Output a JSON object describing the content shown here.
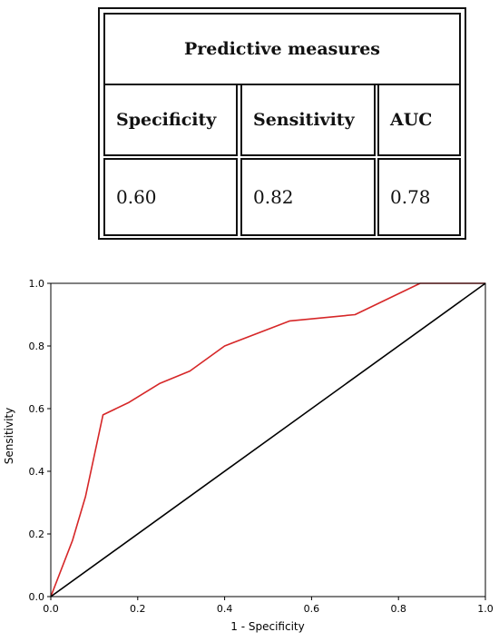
{
  "table": {
    "title": "Predictive measures",
    "headers": [
      "Specificity",
      "Sensitivity",
      "AUC"
    ],
    "values": [
      "0.60",
      "0.82",
      "0.78"
    ]
  },
  "chart_data": {
    "type": "line",
    "xlabel": "1 - Specificity",
    "ylabel": "Sensitivity",
    "xlim": [
      0,
      1
    ],
    "ylim": [
      0,
      1
    ],
    "xticks": [
      0.0,
      0.2,
      0.4,
      0.6,
      0.8,
      1.0
    ],
    "yticks": [
      0.0,
      0.2,
      0.4,
      0.6,
      0.8,
      1.0
    ],
    "xtick_labels": [
      "0.0",
      "0.2",
      "0.4",
      "0.6",
      "0.8",
      "1.0"
    ],
    "ytick_labels": [
      "0.0",
      "0.2",
      "0.4",
      "0.6",
      "0.8",
      "1.0"
    ],
    "grid": false,
    "series": [
      {
        "color": "#d62728",
        "x": [
          0.0,
          0.05,
          0.08,
          0.12,
          0.18,
          0.25,
          0.32,
          0.4,
          0.55,
          0.7,
          0.85,
          1.0
        ],
        "y": [
          0.0,
          0.18,
          0.32,
          0.58,
          0.62,
          0.68,
          0.72,
          0.8,
          0.88,
          0.9,
          1.0,
          1.0
        ]
      },
      {
        "color": "#000000",
        "x": [
          0.0,
          1.0
        ],
        "y": [
          0.0,
          1.0
        ]
      }
    ]
  }
}
